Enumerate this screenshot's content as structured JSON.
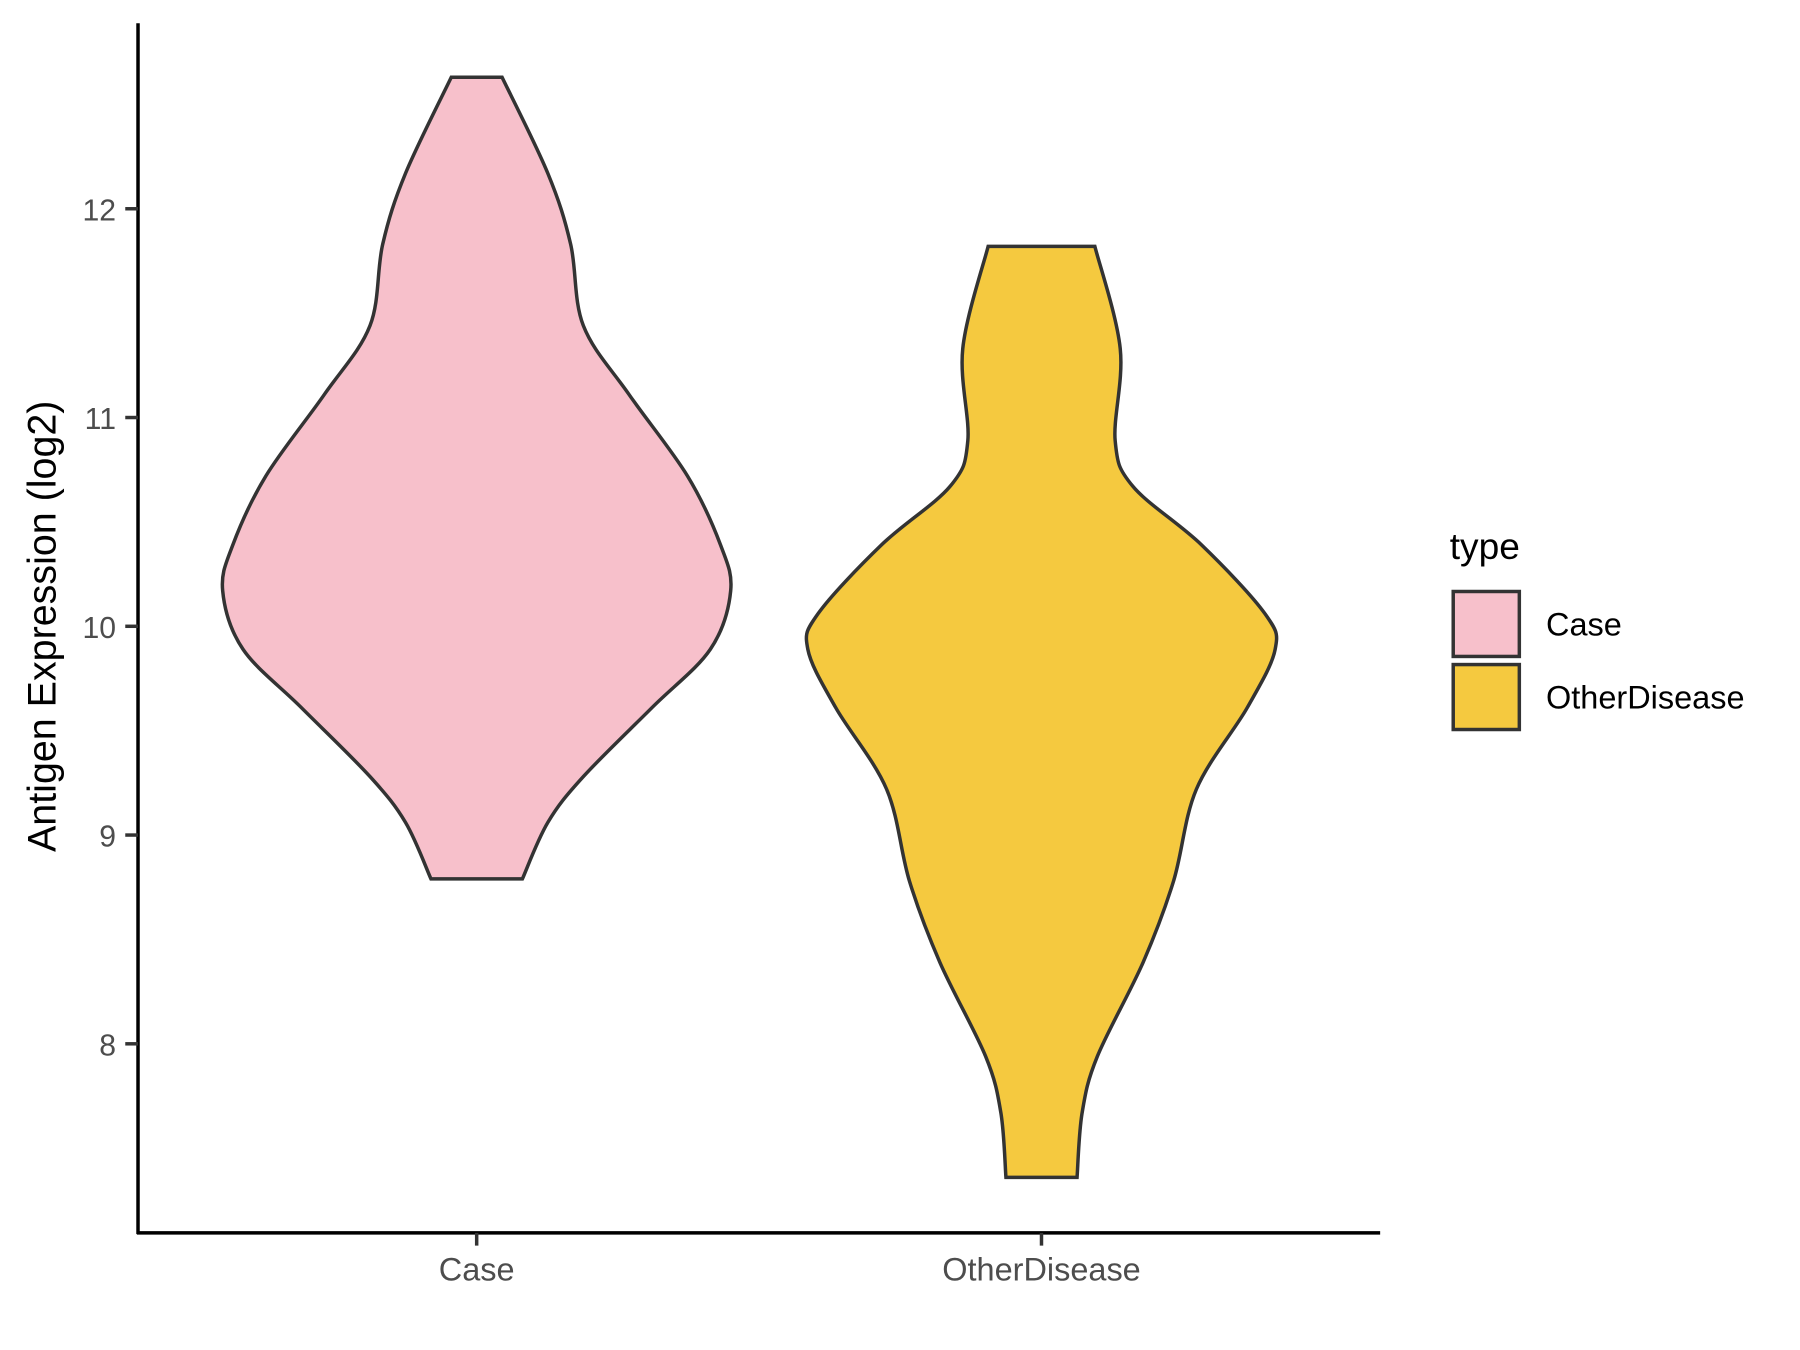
{
  "chart_data": {
    "type": "violin",
    "title": "",
    "xlabel": "",
    "ylabel": "Antigen Expression (log2)",
    "categories": [
      "Case",
      "OtherDisease"
    ],
    "y_ticks": [
      8,
      9,
      10,
      11,
      12
    ],
    "ylim": [
      7.1,
      12.9
    ],
    "grid": false,
    "legend": {
      "title": "type",
      "position": "right",
      "entries": [
        "Case",
        "OtherDisease"
      ]
    },
    "series": [
      {
        "name": "Case",
        "color": "#F7C0CB",
        "min": 8.79,
        "max": 12.63,
        "density_profile": [
          [
            12.63,
            0.1
          ],
          [
            12.17,
            0.28
          ],
          [
            11.83,
            0.37
          ],
          [
            11.44,
            0.42
          ],
          [
            11.11,
            0.6
          ],
          [
            10.72,
            0.83
          ],
          [
            10.39,
            0.96
          ],
          [
            10.17,
            1.0
          ],
          [
            9.89,
            0.92
          ],
          [
            9.61,
            0.69
          ],
          [
            9.28,
            0.42
          ],
          [
            9.06,
            0.28
          ],
          [
            8.79,
            0.18
          ]
        ]
      },
      {
        "name": "OtherDisease",
        "color": "#F5C93F",
        "min": 7.36,
        "max": 11.82,
        "density_profile": [
          [
            11.82,
            0.21
          ],
          [
            11.33,
            0.31
          ],
          [
            10.89,
            0.29
          ],
          [
            10.67,
            0.36
          ],
          [
            10.39,
            0.63
          ],
          [
            10.06,
            0.88
          ],
          [
            9.89,
            0.92
          ],
          [
            9.61,
            0.81
          ],
          [
            9.22,
            0.61
          ],
          [
            8.78,
            0.52
          ],
          [
            8.39,
            0.4
          ],
          [
            7.94,
            0.22
          ],
          [
            7.67,
            0.16
          ],
          [
            7.36,
            0.14
          ]
        ]
      }
    ]
  }
}
